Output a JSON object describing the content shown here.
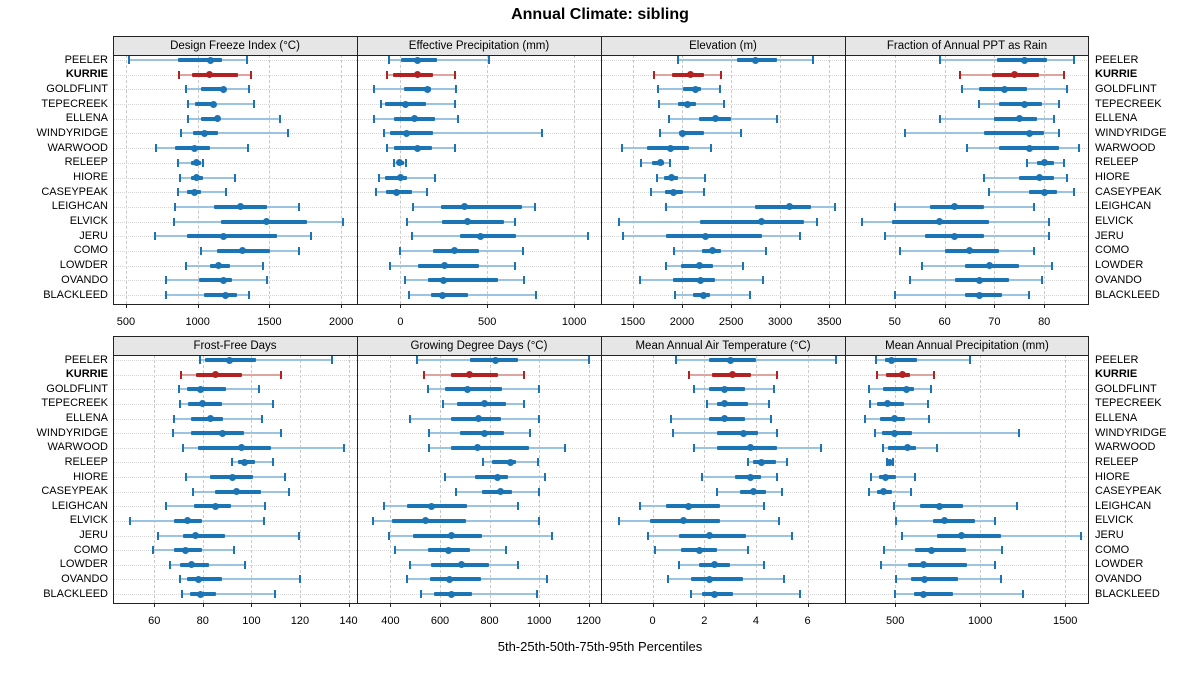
{
  "title": "Annual Climate: sibling",
  "caption": "5th-25th-50th-75th-95th Percentiles",
  "chart_data": {
    "type": "dotplot",
    "title": "Annual Climate: sibling",
    "caption": "5th-25th-50th-75th-95th Percentiles",
    "percentiles": [
      5,
      25,
      50,
      75,
      95
    ],
    "legend_position": "none",
    "grid": "on",
    "sites": [
      "PEELER",
      "KURRIE",
      "GOLDFLINT",
      "TEPECREEK",
      "ELLENA",
      "WINDYRIDGE",
      "WARWOOD",
      "RELEEP",
      "HIORE",
      "CASEYPEAK",
      "LEIGHCAN",
      "ELVICK",
      "JERU",
      "COMO",
      "LOWDER",
      "OVANDO",
      "BLACKLEED"
    ],
    "highlight_site": "KURRIE",
    "colors": {
      "normal": "#1b74b4",
      "normal_light": "#9cc3e0",
      "highlight": "#b22222",
      "highlight_light": "#dca5a0",
      "strip_bg": "#e6e6e6",
      "grid": "#c9c9c9"
    },
    "panels": [
      {
        "title": "Design Freeze Index (°C)",
        "grid_row": 0,
        "grid_col": 0,
        "xlim": [
          410,
          2110
        ],
        "ticks": [
          500,
          1000,
          1500,
          2000
        ],
        "values": [
          [
            520,
            860,
            1090,
            1170,
            1340
          ],
          [
            870,
            960,
            1085,
            1280,
            1370
          ],
          [
            920,
            1020,
            1180,
            1190,
            1360
          ],
          [
            930,
            980,
            1110,
            1120,
            1390
          ],
          [
            930,
            1020,
            1140,
            1150,
            1570
          ],
          [
            880,
            970,
            1050,
            1140,
            1630
          ],
          [
            710,
            840,
            975,
            1085,
            1350
          ],
          [
            860,
            950,
            990,
            1020,
            1040
          ],
          [
            875,
            950,
            990,
            1040,
            1260
          ],
          [
            860,
            925,
            980,
            1025,
            1200
          ],
          [
            840,
            1110,
            1300,
            1485,
            1705
          ],
          [
            835,
            1165,
            1480,
            1760,
            2010
          ],
          [
            700,
            925,
            1180,
            1550,
            1790
          ],
          [
            1020,
            1135,
            1310,
            1505,
            1705
          ],
          [
            920,
            1085,
            1145,
            1225,
            1455
          ],
          [
            780,
            1010,
            1180,
            1240,
            1485
          ],
          [
            780,
            1045,
            1190,
            1275,
            1360
          ]
        ]
      },
      {
        "title": "Effective Precipitation (mm)",
        "grid_row": 0,
        "grid_col": 1,
        "xlim": [
          -250,
          1155
        ],
        "ticks": [
          0,
          500,
          1000
        ],
        "values": [
          [
            -65,
            5,
            100,
            210,
            510
          ],
          [
            -75,
            -45,
            100,
            190,
            315
          ],
          [
            -155,
            20,
            155,
            175,
            320
          ],
          [
            -110,
            -90,
            30,
            150,
            315
          ],
          [
            -155,
            -35,
            80,
            200,
            330
          ],
          [
            -95,
            -60,
            35,
            190,
            815
          ],
          [
            -75,
            -35,
            100,
            180,
            315
          ],
          [
            -35,
            -20,
            -5,
            20,
            30
          ],
          [
            -125,
            -90,
            0,
            40,
            200
          ],
          [
            -140,
            -85,
            -20,
            65,
            155
          ],
          [
            70,
            235,
            370,
            700,
            775
          ],
          [
            40,
            240,
            385,
            595,
            660
          ],
          [
            65,
            340,
            460,
            665,
            1080
          ],
          [
            0,
            185,
            310,
            450,
            705
          ],
          [
            -60,
            100,
            255,
            450,
            660
          ],
          [
            25,
            160,
            245,
            565,
            710
          ],
          [
            50,
            175,
            240,
            390,
            780
          ]
        ]
      },
      {
        "title": "Elevation (m)",
        "grid_row": 0,
        "grid_col": 2,
        "xlim": [
          1175,
          3660
        ],
        "ticks": [
          1500,
          2000,
          2500,
          3000,
          3500
        ],
        "values": [
          [
            1955,
            2560,
            2750,
            2970,
            3330
          ],
          [
            1710,
            1900,
            2090,
            2220,
            2400
          ],
          [
            1755,
            2010,
            2140,
            2195,
            2385
          ],
          [
            1770,
            1955,
            2060,
            2140,
            2430
          ],
          [
            1865,
            2170,
            2345,
            2495,
            2970
          ],
          [
            1780,
            1965,
            2000,
            2220,
            2600
          ],
          [
            1390,
            1645,
            1880,
            2070,
            2295
          ],
          [
            1580,
            1695,
            1780,
            1820,
            1880
          ],
          [
            1745,
            1815,
            1890,
            1965,
            2230
          ],
          [
            1685,
            1830,
            1915,
            2010,
            2220
          ],
          [
            1840,
            2740,
            3090,
            3315,
            3555
          ],
          [
            1360,
            2185,
            2805,
            3240,
            3375
          ],
          [
            1400,
            1840,
            2240,
            2815,
            3200
          ],
          [
            1915,
            2205,
            2315,
            2400,
            2850
          ],
          [
            1835,
            1985,
            2175,
            2315,
            2620
          ],
          [
            1575,
            1910,
            2185,
            2340,
            2825
          ],
          [
            1930,
            2110,
            2215,
            2290,
            2695
          ]
        ]
      },
      {
        "title": "Fraction of Annual PPT as Rain",
        "grid_row": 0,
        "grid_col": 3,
        "xlim": [
          40,
          89
        ],
        "ticks": [
          50,
          60,
          70,
          80
        ],
        "values": [
          [
            59,
            70.5,
            76,
            80.5,
            86
          ],
          [
            63,
            69.5,
            74,
            79,
            84
          ],
          [
            63.5,
            67,
            72,
            76.5,
            84.5
          ],
          [
            67,
            71,
            76,
            79.5,
            83
          ],
          [
            59,
            70,
            75,
            78.5,
            82
          ],
          [
            52,
            68,
            77,
            80,
            83
          ],
          [
            64.5,
            71,
            77,
            83,
            87
          ],
          [
            76.5,
            78.5,
            80,
            82,
            84
          ],
          [
            68,
            75,
            79,
            82,
            84.5
          ],
          [
            69,
            77,
            80,
            82.5,
            86
          ],
          [
            50,
            57,
            62,
            68,
            78
          ],
          [
            43.5,
            49.5,
            59,
            69,
            81
          ],
          [
            48,
            56,
            62,
            68,
            81
          ],
          [
            51,
            60,
            65,
            71,
            78
          ],
          [
            55.5,
            64,
            69,
            75,
            81.5
          ],
          [
            53,
            62,
            67,
            73,
            79.5
          ],
          [
            50,
            64,
            67,
            71.5,
            77
          ]
        ]
      },
      {
        "title": "Frost-Free Days",
        "grid_row": 1,
        "grid_col": 0,
        "xlim": [
          43,
          143.5
        ],
        "ticks": [
          60,
          80,
          100,
          120,
          140
        ],
        "values": [
          [
            79,
            81,
            91,
            102,
            133
          ],
          [
            71,
            77,
            85,
            96,
            112
          ],
          [
            70,
            73.5,
            79,
            89.5,
            103
          ],
          [
            70.5,
            74,
            80,
            88,
            109
          ],
          [
            68,
            75,
            83,
            88.5,
            104.5
          ],
          [
            67.5,
            75,
            88,
            97,
            112
          ],
          [
            72,
            78,
            96,
            108,
            138
          ],
          [
            92,
            94.5,
            97,
            101.5,
            109
          ],
          [
            73,
            83,
            92,
            100.5,
            114
          ],
          [
            76,
            85,
            94,
            104,
            115.5
          ],
          [
            65,
            76.5,
            85,
            91.5,
            105.5
          ],
          [
            50,
            68,
            73.5,
            79.5,
            105
          ],
          [
            61.5,
            72,
            77,
            89,
            119.5
          ],
          [
            59.5,
            68,
            73,
            79.5,
            93
          ],
          [
            66.5,
            70.5,
            75.5,
            82.5,
            97.5
          ],
          [
            70.5,
            73.5,
            78,
            88,
            120
          ],
          [
            71.5,
            74.5,
            79,
            85.5,
            109.5
          ]
        ]
      },
      {
        "title": "Growing Degree Days (°C)",
        "grid_row": 1,
        "grid_col": 1,
        "xlim": [
          265,
          1250
        ],
        "ticks": [
          400,
          600,
          800,
          1000,
          1200
        ],
        "values": [
          [
            505,
            720,
            825,
            915,
            1200
          ],
          [
            535,
            645,
            720,
            835,
            940
          ],
          [
            550,
            620,
            710,
            850,
            1000
          ],
          [
            610,
            670,
            780,
            865,
            940
          ],
          [
            480,
            645,
            755,
            845,
            1000
          ],
          [
            555,
            680,
            780,
            860,
            965
          ],
          [
            555,
            645,
            750,
            960,
            1105
          ],
          [
            775,
            810,
            885,
            905,
            995
          ],
          [
            620,
            740,
            830,
            875,
            1025
          ],
          [
            665,
            770,
            845,
            890,
            1000
          ],
          [
            375,
            465,
            565,
            710,
            915
          ],
          [
            330,
            405,
            540,
            705,
            1000
          ],
          [
            395,
            490,
            645,
            770,
            1050
          ],
          [
            420,
            550,
            635,
            720,
            865
          ],
          [
            480,
            565,
            685,
            800,
            915
          ],
          [
            465,
            560,
            640,
            765,
            1030
          ],
          [
            525,
            575,
            645,
            730,
            990
          ]
        ]
      },
      {
        "title": "Mean Annual Air Temperature (°C)",
        "grid_row": 1,
        "grid_col": 2,
        "xlim": [
          -2,
          7.45
        ],
        "ticks": [
          0,
          2,
          4,
          6
        ],
        "values": [
          [
            0.9,
            2.2,
            3.0,
            4.0,
            7.1
          ],
          [
            1.4,
            2.3,
            3.1,
            3.8,
            4.8
          ],
          [
            1.6,
            2.2,
            2.8,
            3.6,
            4.7
          ],
          [
            2.1,
            2.5,
            2.8,
            3.7,
            4.5
          ],
          [
            0.7,
            2.2,
            2.8,
            3.6,
            4.6
          ],
          [
            0.8,
            2.5,
            3.5,
            4.1,
            4.8
          ],
          [
            1.6,
            2.5,
            3.8,
            4.8,
            6.5
          ],
          [
            3.7,
            3.9,
            4.2,
            4.8,
            5.2
          ],
          [
            1.9,
            3.2,
            3.8,
            4.2,
            4.8
          ],
          [
            2.5,
            3.4,
            3.9,
            4.4,
            5.0
          ],
          [
            -0.5,
            0.5,
            1.4,
            2.6,
            4.3
          ],
          [
            -1.3,
            -0.1,
            1.2,
            2.6,
            4.9
          ],
          [
            -0.2,
            1.0,
            2.2,
            3.6,
            5.4
          ],
          [
            0.1,
            1.1,
            1.8,
            2.5,
            3.7
          ],
          [
            1.0,
            1.8,
            2.4,
            3.0,
            4.3
          ],
          [
            0.6,
            1.5,
            2.2,
            3.5,
            5.1
          ],
          [
            1.5,
            1.9,
            2.4,
            3.1,
            5.7
          ]
        ]
      },
      {
        "title": "Mean Annual Precipitation (mm)",
        "grid_row": 1,
        "grid_col": 3,
        "xlim": [
          205,
          1640
        ],
        "ticks": [
          500,
          1000,
          1500
        ],
        "values": [
          [
            385,
            440,
            480,
            625,
            940
          ],
          [
            395,
            445,
            540,
            590,
            730
          ],
          [
            345,
            427,
            565,
            610,
            710
          ],
          [
            350,
            390,
            457,
            550,
            695
          ],
          [
            320,
            410,
            495,
            555,
            700
          ],
          [
            380,
            425,
            495,
            600,
            1230
          ],
          [
            428,
            460,
            570,
            623,
            745
          ],
          [
            450,
            457,
            467,
            480,
            486
          ],
          [
            360,
            405,
            445,
            505,
            615
          ],
          [
            345,
            390,
            430,
            480,
            590
          ],
          [
            490,
            647,
            760,
            900,
            1215
          ],
          [
            505,
            720,
            790,
            970,
            1085
          ],
          [
            540,
            745,
            890,
            1120,
            1590
          ],
          [
            437,
            618,
            712,
            915,
            1130
          ],
          [
            418,
            578,
            667,
            925,
            1085
          ],
          [
            505,
            595,
            670,
            870,
            1120
          ],
          [
            496,
            610,
            667,
            843,
            1250
          ]
        ]
      }
    ]
  }
}
